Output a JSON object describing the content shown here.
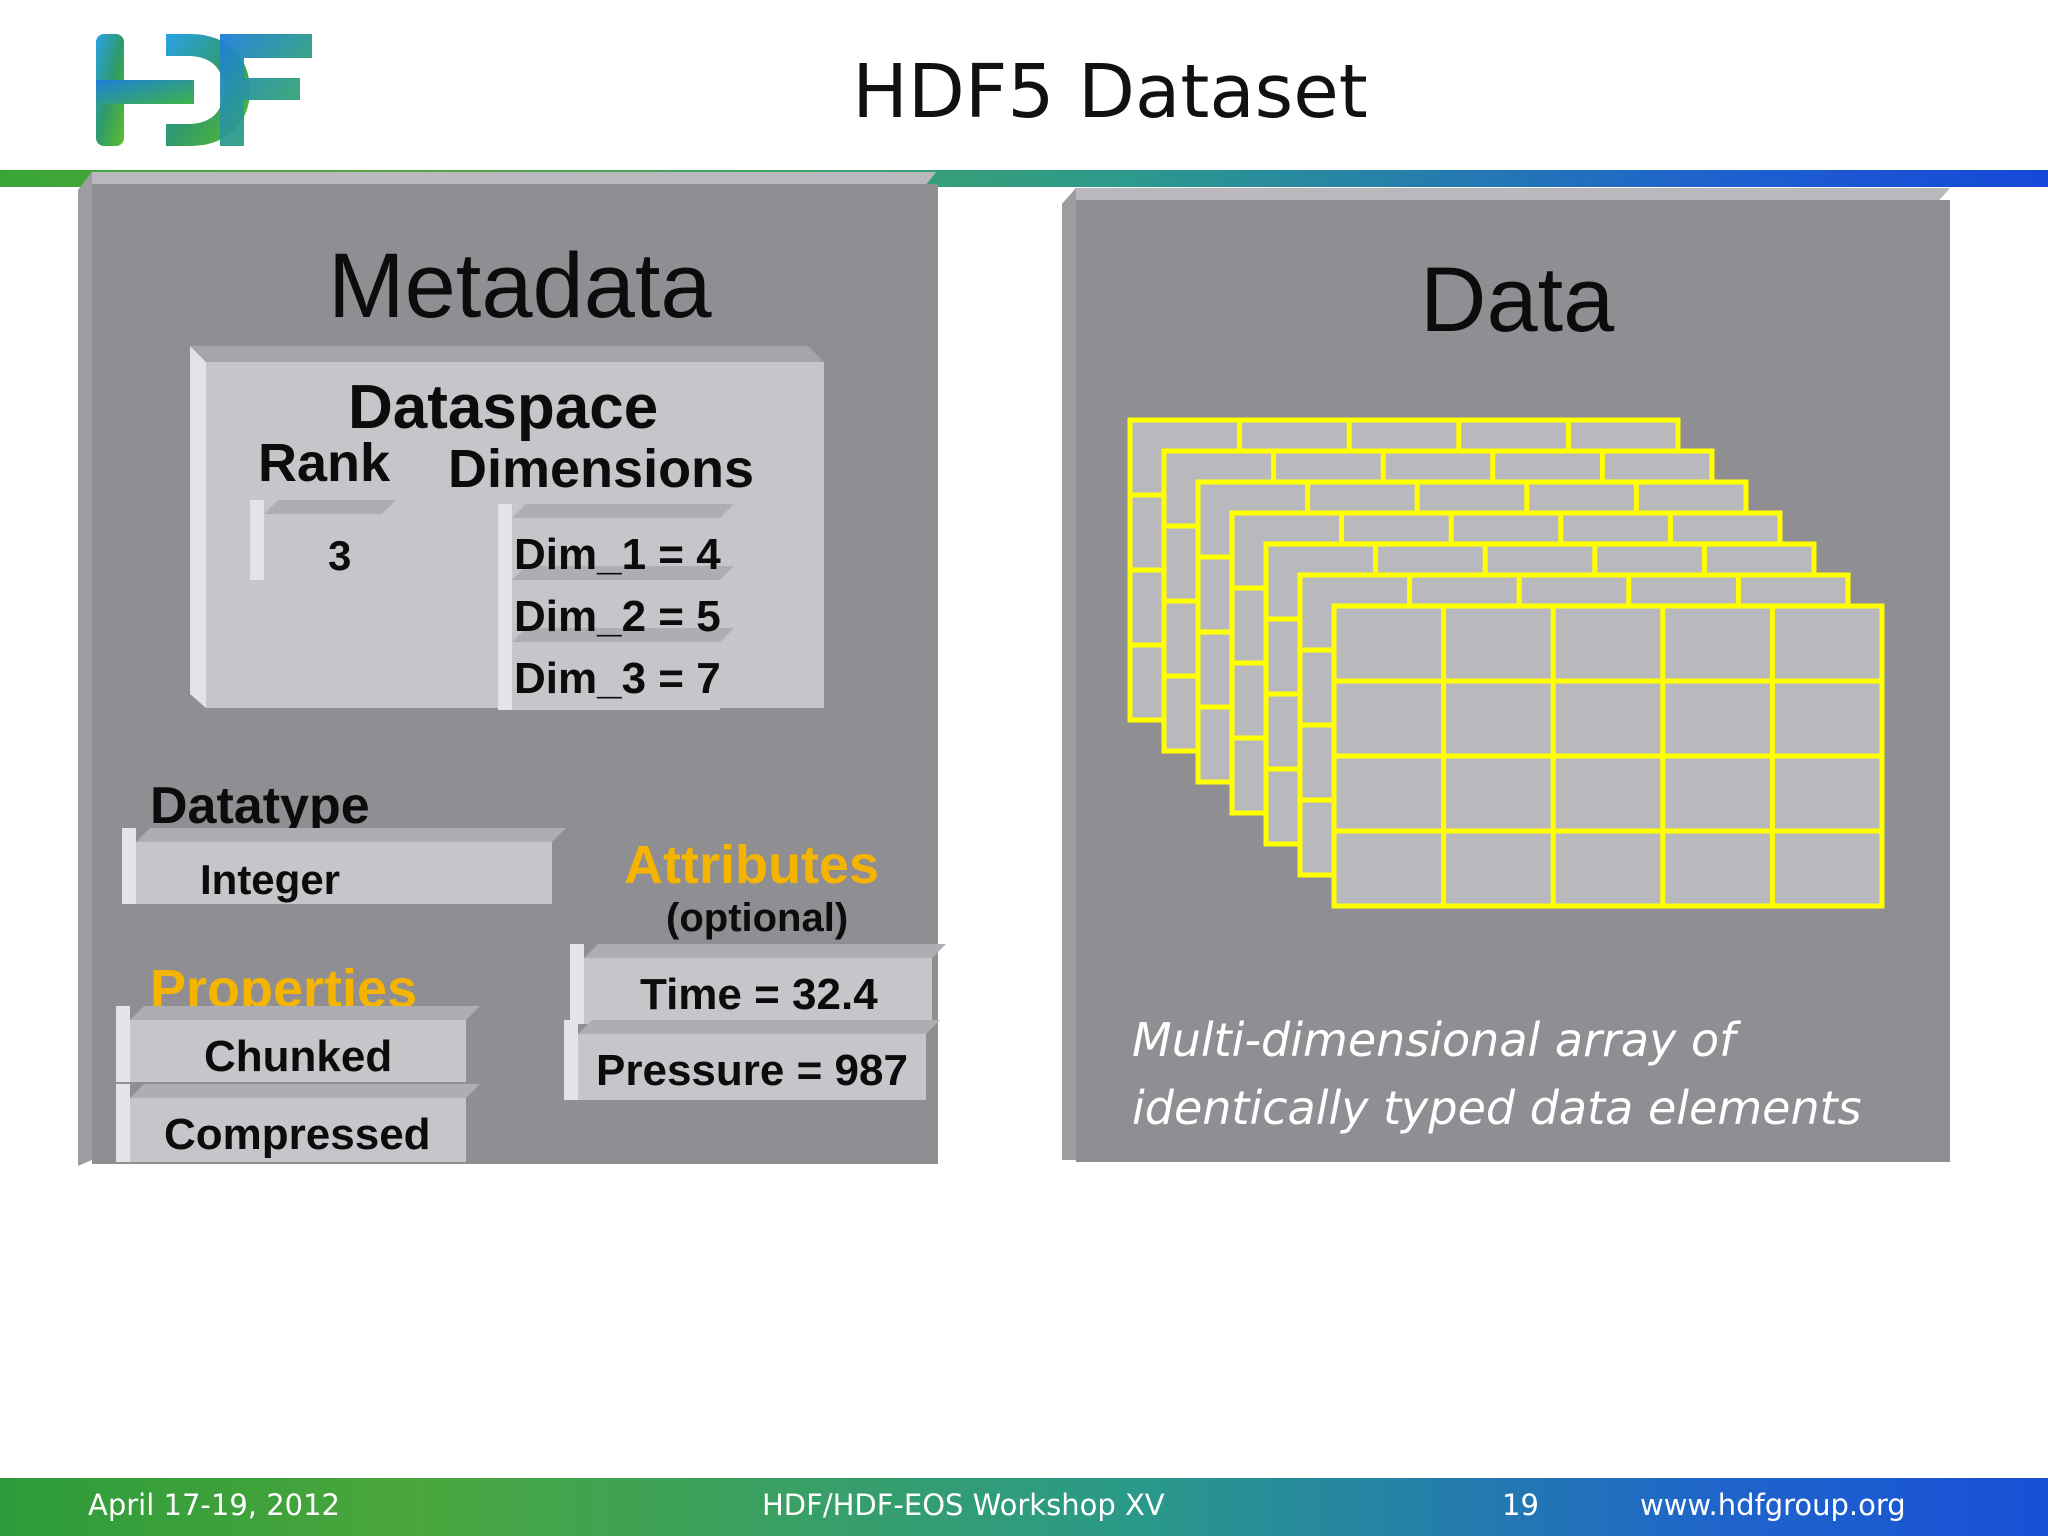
{
  "header": {
    "title": "HDF5 Dataset",
    "logo_text": "HDF"
  },
  "metadata": {
    "heading": "Metadata",
    "dataspace": {
      "heading": "Dataspace",
      "rank_label": "Rank",
      "dimensions_label": "Dimensions",
      "rank_value": "3",
      "dims": [
        "Dim_1 = 4",
        "Dim_2 = 5",
        "Dim_3 = 7"
      ]
    },
    "datatype": {
      "heading": "Datatype",
      "value": "Integer"
    },
    "properties": {
      "heading": "Properties",
      "values": [
        "Chunked",
        "Compressed"
      ]
    },
    "attributes": {
      "heading": "Attributes",
      "note": "(optional)",
      "values": [
        "Time = 32.4",
        "Pressure = 987"
      ]
    }
  },
  "data": {
    "heading": "Data",
    "caption_line1": "Multi-dimensional array of",
    "caption_line2": "identically typed data elements",
    "grid": {
      "layers": 7,
      "rows": 4,
      "cols": 5
    }
  },
  "footer": {
    "date": "April 17-19, 2012",
    "event": "HDF/HDF-EOS Workshop XV",
    "page": "19",
    "url": "www.hdfgroup.org"
  },
  "colors": {
    "accent_orange": "#f5b400",
    "grid_yellow": "#ffff00",
    "panel_gray": "#8f8e92"
  }
}
